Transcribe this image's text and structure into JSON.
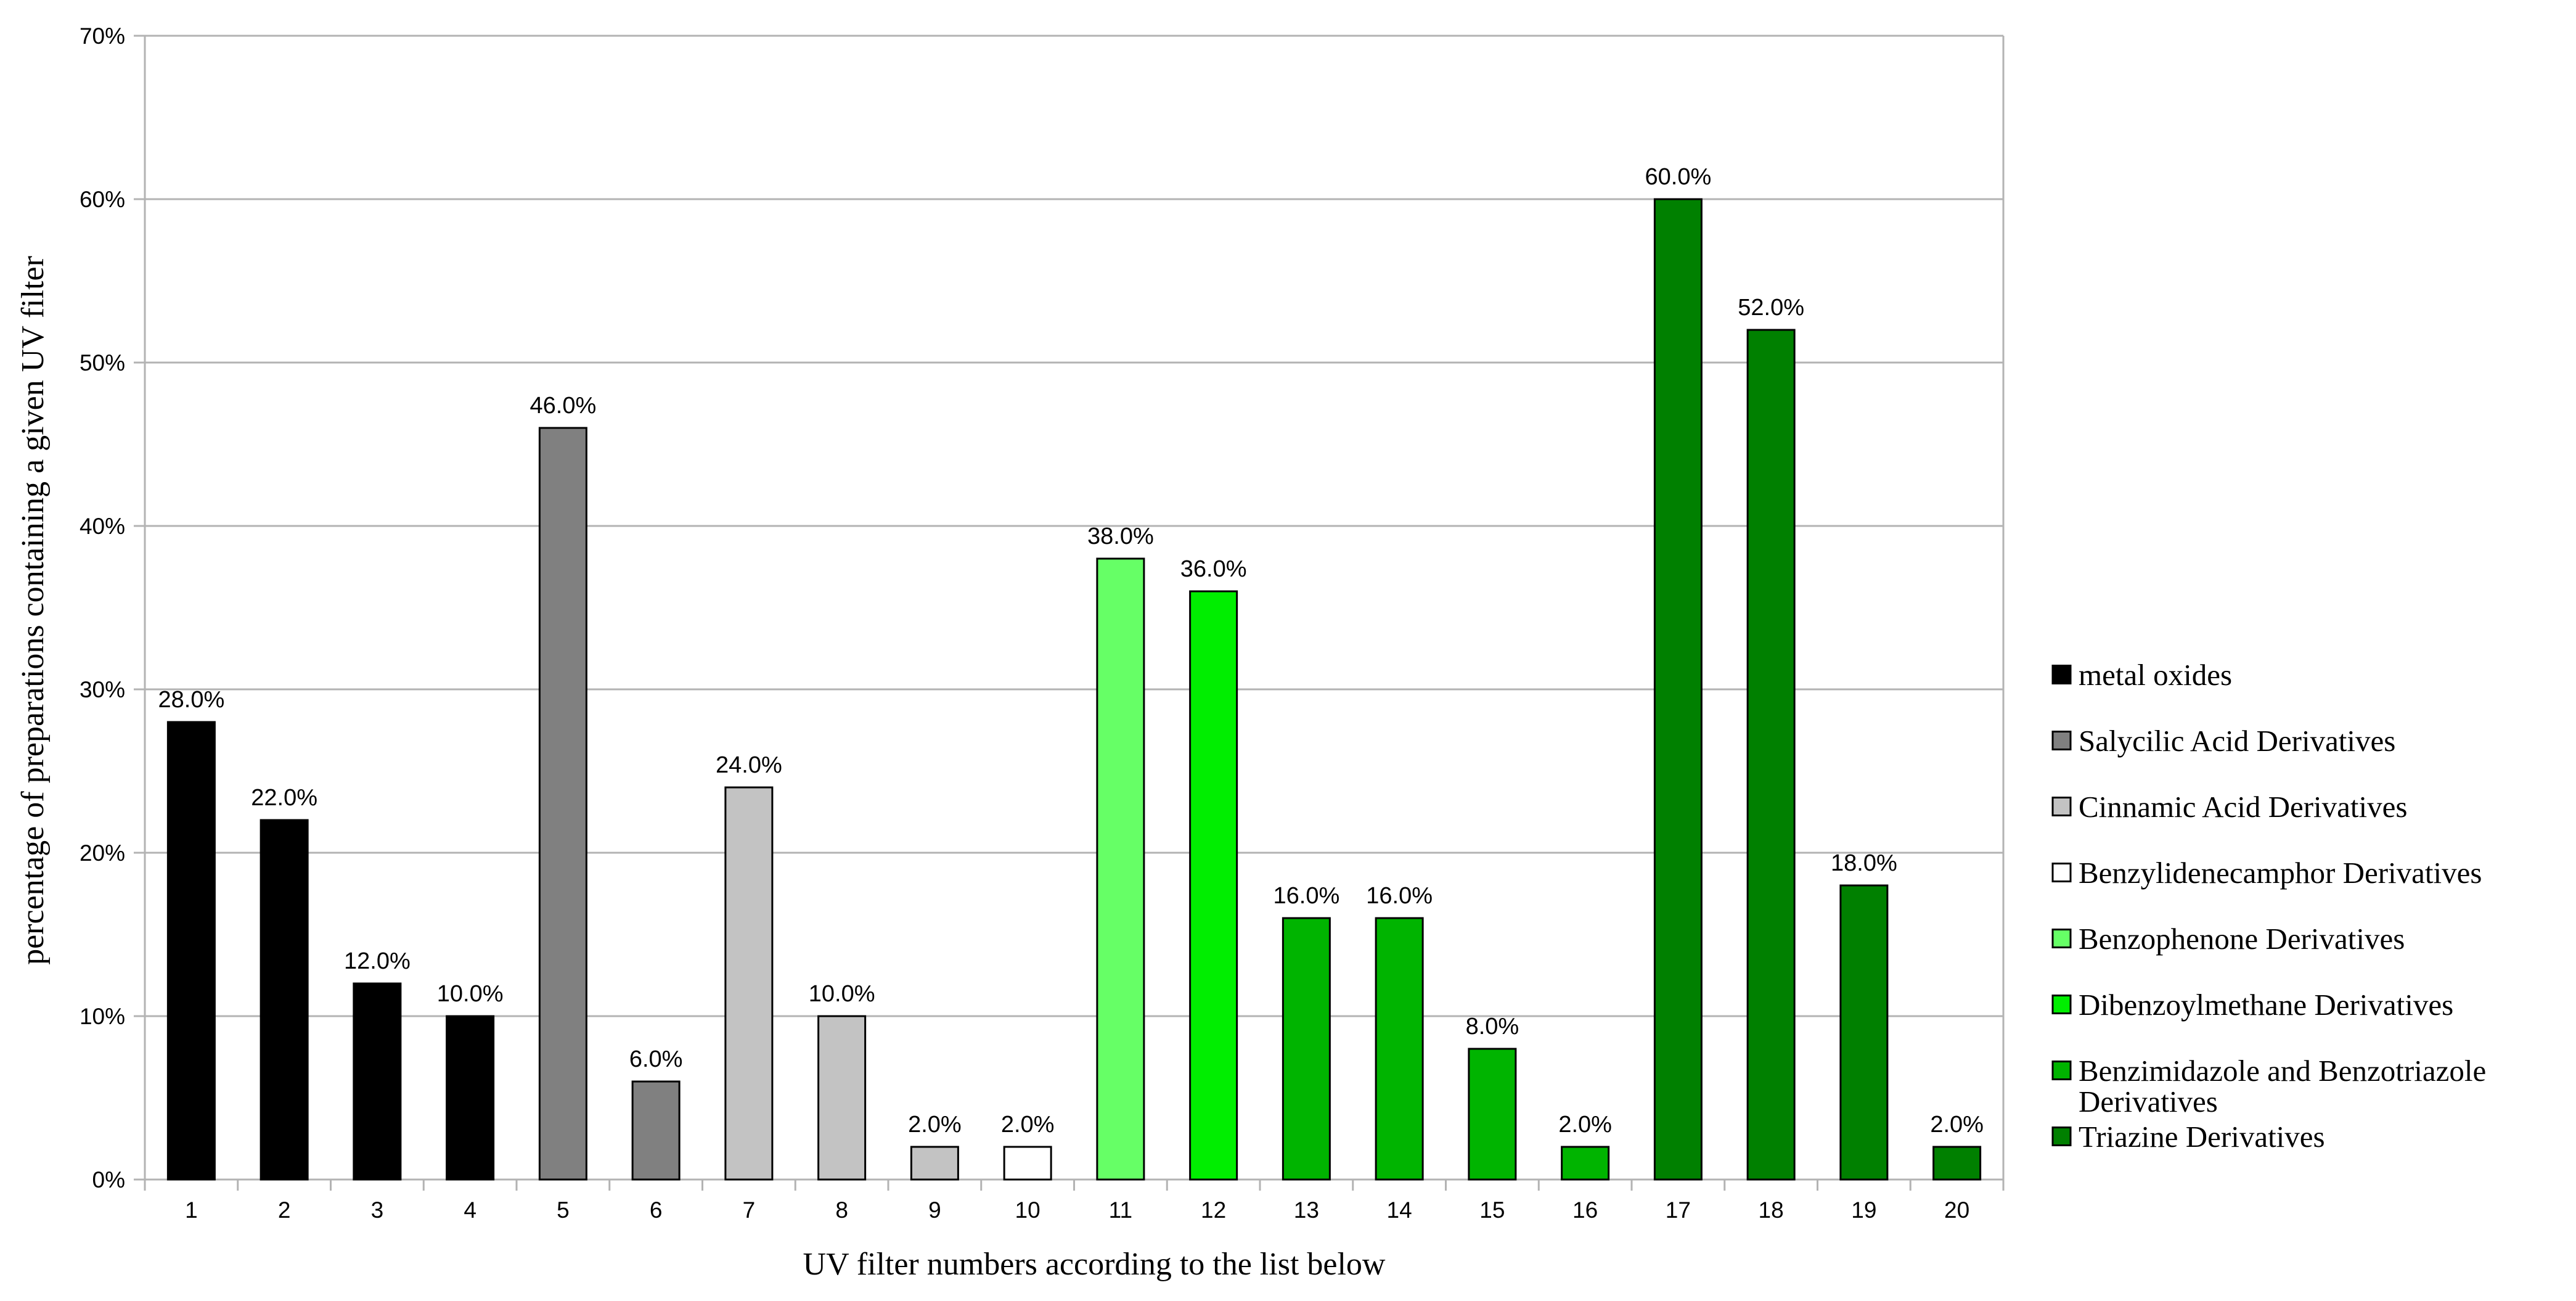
{
  "chart_data": {
    "type": "bar",
    "title": "",
    "xlabel": "UV filter numbers according to the list below",
    "ylabel": "percentage of preparations containing a given UV filter",
    "ylim": [
      0,
      70
    ],
    "yticks": [
      0,
      10,
      20,
      30,
      40,
      50,
      60,
      70
    ],
    "ytick_labels": [
      "0%",
      "10%",
      "20%",
      "30%",
      "40%",
      "50%",
      "60%",
      "70%"
    ],
    "grid": "horizontal",
    "legend_position": "right",
    "categories": [
      "1",
      "2",
      "3",
      "4",
      "5",
      "6",
      "7",
      "8",
      "9",
      "10",
      "11",
      "12",
      "13",
      "14",
      "15",
      "16",
      "17",
      "18",
      "19",
      "20"
    ],
    "values": [
      28.0,
      22.0,
      12.0,
      10.0,
      46.0,
      6.0,
      24.0,
      10.0,
      2.0,
      2.0,
      38.0,
      36.0,
      16.0,
      16.0,
      8.0,
      2.0,
      60.0,
      52.0,
      18.0,
      2.0
    ],
    "value_labels": [
      "28.0%",
      "22.0%",
      "12.0%",
      "10.0%",
      "46.0%",
      "6.0%",
      "24.0%",
      "10.0%",
      "2.0%",
      "2.0%",
      "38.0%",
      "36.0%",
      "16.0%",
      "16.0%",
      "8.0%",
      "2.0%",
      "60.0%",
      "52.0%",
      "18.0%",
      "2.0%"
    ],
    "bar_group": [
      0,
      0,
      0,
      0,
      1,
      1,
      2,
      2,
      2,
      3,
      4,
      5,
      6,
      6,
      6,
      6,
      7,
      7,
      7,
      7
    ],
    "groups": [
      {
        "name": "metal oxides",
        "color": "#000000"
      },
      {
        "name": "Salycilic Acid Derivatives",
        "color": "#808080"
      },
      {
        "name": "Cinnamic Acid Derivatives",
        "color": "#c3c3c3"
      },
      {
        "name": "Benzylidenecamphor Derivatives",
        "color": "#ffffff"
      },
      {
        "name": "Benzophenone Derivatives",
        "color": "#66ff66"
      },
      {
        "name": "Dibenzoylmethane Derivatives",
        "color": "#00ee00"
      },
      {
        "name": "Benzimidazole and Benzotriazole Derivatives",
        "color": "#00b400"
      },
      {
        "name": "Triazine Derivatives",
        "color": "#008000"
      }
    ]
  }
}
